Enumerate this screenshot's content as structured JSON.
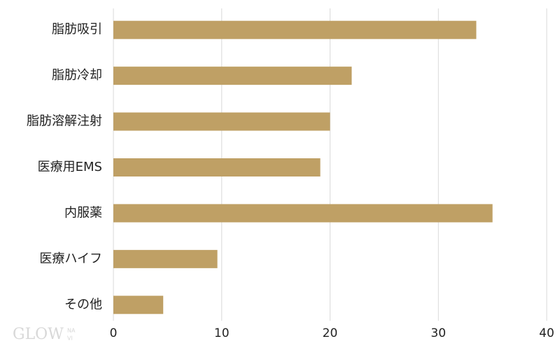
{
  "chart_data": {
    "type": "bar",
    "orientation": "horizontal",
    "categories": [
      "脂肪吸引",
      "脂肪冷却",
      "脂肪溶解注射",
      "医療用EMS",
      "内服薬",
      "医療ハイフ",
      "その他"
    ],
    "values": [
      33.5,
      22,
      20,
      19.1,
      35,
      9.6,
      4.6
    ],
    "color": "#bfa065",
    "xlim": [
      0,
      40
    ],
    "xticks": [
      0,
      10,
      20,
      30,
      40
    ],
    "grid": true,
    "watermark": {
      "main": "GLOW",
      "small_top": "NA",
      "small_bottom": "VI"
    }
  }
}
